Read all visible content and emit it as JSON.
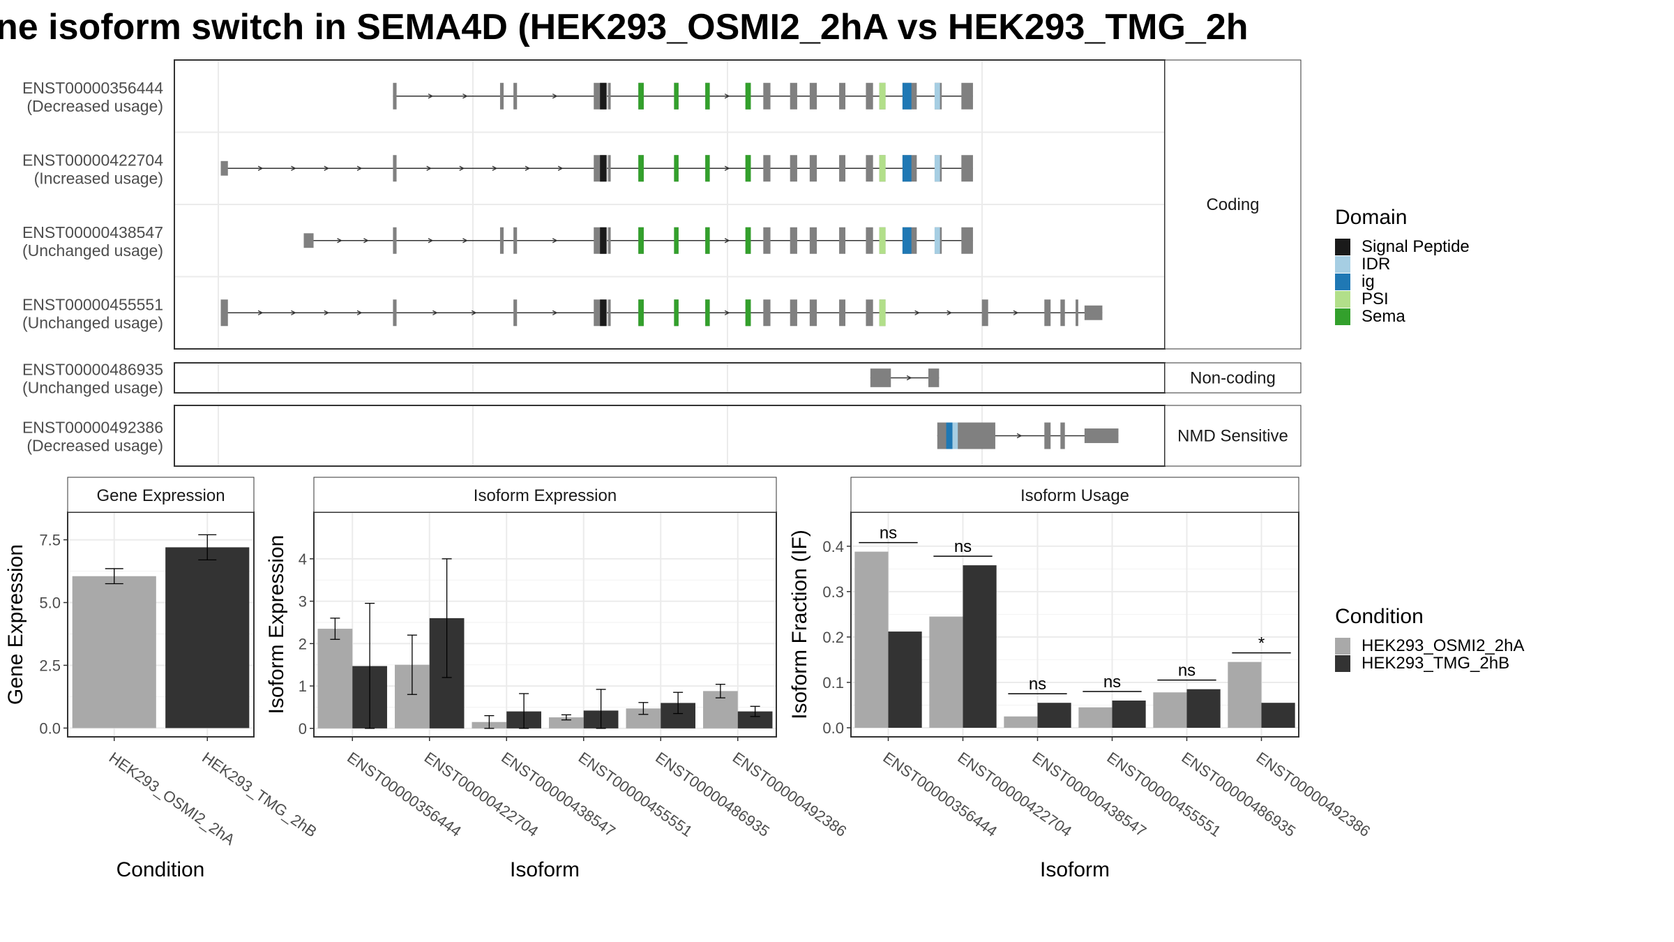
{
  "title": "ne isoform switch in SEMA4D (HEK293_OSMI2_2hA vs HEK293_TMG_2h",
  "colors": {
    "exon": "#808080",
    "signal_peptide": "#1a1a1a",
    "idr": "#a6cee3",
    "ig": "#1f78b4",
    "psi": "#b2df8a",
    "sema": "#33a02c",
    "cond1": "#a9a9a9",
    "cond2": "#333333"
  },
  "transcript_panel": {
    "x_range": [
      0,
      1110
    ],
    "groups": [
      {
        "name": "Coding",
        "transcripts": [
          {
            "id": "ENST00000356444",
            "usage": "(Decreased usage)",
            "exons": [
              [
                245,
                249
              ],
              [
                365,
                369
              ],
              [
                380,
                384
              ],
              [
                470,
                485
              ],
              [
                486,
                489
              ],
              [
                520,
                526
              ],
              [
                560,
                565
              ],
              [
                595,
                600
              ],
              [
                640,
                646
              ],
              [
                660,
                668
              ],
              [
                690,
                698
              ],
              [
                712,
                720
              ],
              [
                745,
                752
              ],
              [
                775,
                783
              ],
              [
                790,
                797
              ],
              [
                816,
                832
              ],
              [
                852,
                860
              ],
              [
                882,
                895
              ]
            ],
            "utr": [
              [
                470,
                476
              ]
            ],
            "domains": [
              {
                "type": "signal_peptide",
                "range": [
                  477,
                  484
                ]
              },
              {
                "type": "sema",
                "range": [
                  520,
                  526
                ]
              },
              {
                "type": "sema",
                "range": [
                  560,
                  565
                ]
              },
              {
                "type": "sema",
                "range": [
                  595,
                  600
                ]
              },
              {
                "type": "sema",
                "range": [
                  640,
                  646
                ]
              },
              {
                "type": "psi",
                "range": [
                  790,
                  797
                ]
              },
              {
                "type": "ig",
                "range": [
                  816,
                  826
                ]
              },
              {
                "type": "idr",
                "range": [
                  852,
                  858
                ]
              }
            ]
          },
          {
            "id": "ENST00000422704",
            "usage": "(Increased usage)",
            "exons": [
              [
                52,
                60
              ],
              [
                245,
                249
              ],
              [
                470,
                485
              ],
              [
                486,
                489
              ],
              [
                520,
                526
              ],
              [
                560,
                565
              ],
              [
                595,
                600
              ],
              [
                640,
                646
              ],
              [
                660,
                668
              ],
              [
                690,
                698
              ],
              [
                712,
                720
              ],
              [
                745,
                752
              ],
              [
                775,
                783
              ],
              [
                790,
                797
              ],
              [
                816,
                832
              ],
              [
                852,
                860
              ],
              [
                882,
                895
              ]
            ],
            "utr": [
              [
                52,
                60
              ]
            ],
            "domains": [
              {
                "type": "signal_peptide",
                "range": [
                  477,
                  484
                ]
              },
              {
                "type": "sema",
                "range": [
                  520,
                  526
                ]
              },
              {
                "type": "sema",
                "range": [
                  560,
                  565
                ]
              },
              {
                "type": "sema",
                "range": [
                  595,
                  600
                ]
              },
              {
                "type": "sema",
                "range": [
                  640,
                  646
                ]
              },
              {
                "type": "psi",
                "range": [
                  790,
                  797
                ]
              },
              {
                "type": "ig",
                "range": [
                  816,
                  826
                ]
              },
              {
                "type": "idr",
                "range": [
                  852,
                  858
                ]
              }
            ]
          },
          {
            "id": "ENST00000438547",
            "usage": "(Unchanged usage)",
            "exons": [
              [
                145,
                156
              ],
              [
                245,
                249
              ],
              [
                365,
                369
              ],
              [
                380,
                384
              ],
              [
                470,
                485
              ],
              [
                486,
                489
              ],
              [
                520,
                526
              ],
              [
                560,
                565
              ],
              [
                595,
                600
              ],
              [
                640,
                646
              ],
              [
                660,
                668
              ],
              [
                690,
                698
              ],
              [
                712,
                720
              ],
              [
                745,
                752
              ],
              [
                775,
                783
              ],
              [
                790,
                797
              ],
              [
                816,
                832
              ],
              [
                852,
                860
              ],
              [
                882,
                895
              ]
            ],
            "utr": [
              [
                145,
                156
              ]
            ],
            "domains": [
              {
                "type": "signal_peptide",
                "range": [
                  477,
                  484
                ]
              },
              {
                "type": "sema",
                "range": [
                  520,
                  526
                ]
              },
              {
                "type": "sema",
                "range": [
                  560,
                  565
                ]
              },
              {
                "type": "sema",
                "range": [
                  595,
                  600
                ]
              },
              {
                "type": "sema",
                "range": [
                  640,
                  646
                ]
              },
              {
                "type": "psi",
                "range": [
                  790,
                  797
                ]
              },
              {
                "type": "ig",
                "range": [
                  816,
                  826
                ]
              },
              {
                "type": "idr",
                "range": [
                  852,
                  858
                ]
              }
            ]
          },
          {
            "id": "ENST00000455551",
            "usage": "(Unchanged usage)",
            "exons": [
              [
                52,
                60
              ],
              [
                245,
                249
              ],
              [
                380,
                384
              ],
              [
                470,
                485
              ],
              [
                486,
                489
              ],
              [
                520,
                526
              ],
              [
                560,
                565
              ],
              [
                595,
                600
              ],
              [
                640,
                646
              ],
              [
                660,
                668
              ],
              [
                690,
                698
              ],
              [
                712,
                720
              ],
              [
                745,
                752
              ],
              [
                775,
                783
              ],
              [
                790,
                797
              ],
              [
                905,
                912
              ],
              [
                975,
                982
              ],
              [
                993,
                998
              ],
              [
                1010,
                1013
              ],
              [
                1020,
                1040
              ]
            ],
            "utr": [
              [
                1020,
                1040
              ]
            ],
            "domains": [
              {
                "type": "signal_peptide",
                "range": [
                  477,
                  484
                ]
              },
              {
                "type": "sema",
                "range": [
                  520,
                  526
                ]
              },
              {
                "type": "sema",
                "range": [
                  560,
                  565
                ]
              },
              {
                "type": "sema",
                "range": [
                  595,
                  600
                ]
              },
              {
                "type": "sema",
                "range": [
                  640,
                  646
                ]
              },
              {
                "type": "psi",
                "range": [
                  790,
                  797
                ]
              }
            ]
          }
        ]
      },
      {
        "name": "Non-coding",
        "transcripts": [
          {
            "id": "ENST00000486935",
            "usage": "(Unchanged usage)",
            "exons": [
              [
                780,
                803
              ],
              [
                845,
                857
              ]
            ],
            "utr": [],
            "domains": []
          }
        ]
      },
      {
        "name": "NMD Sensitive",
        "transcripts": [
          {
            "id": "ENST00000492386",
            "usage": "(Decreased usage)",
            "exons": [
              [
                855,
                920
              ],
              [
                975,
                982
              ],
              [
                993,
                998
              ],
              [
                1020,
                1058
              ]
            ],
            "utr": [
              [
                1020,
                1058
              ]
            ],
            "domains": [
              {
                "type": "ig",
                "range": [
                  865,
                  872
                ]
              },
              {
                "type": "idr",
                "range": [
                  872,
                  878
                ]
              }
            ]
          }
        ]
      }
    ]
  },
  "domain_legend": {
    "title": "Domain",
    "items": [
      {
        "label": "Signal Peptide",
        "key": "signal_peptide"
      },
      {
        "label": "IDR",
        "key": "idr"
      },
      {
        "label": "ig",
        "key": "ig"
      },
      {
        "label": "PSI",
        "key": "psi"
      },
      {
        "label": "Sema",
        "key": "sema"
      }
    ]
  },
  "condition_legend": {
    "title": "Condition",
    "items": [
      {
        "label": "HEK293_OSMI2_2hA",
        "key": "cond1"
      },
      {
        "label": "HEK293_TMG_2hB",
        "key": "cond2"
      }
    ]
  },
  "chart_data": [
    {
      "type": "bar",
      "title": "Gene Expression",
      "xlabel": "Condition",
      "ylabel": "Gene Expression",
      "categories": [
        "HEK293_OSMI2_2hA",
        "HEK293_TMG_2hB"
      ],
      "values": [
        6.05,
        7.2
      ],
      "errors": [
        [
          5.75,
          6.35
        ],
        [
          6.7,
          7.7
        ]
      ],
      "ylim": [
        -0.35,
        8.6
      ],
      "yticks": [
        0.0,
        2.5,
        5.0,
        7.5
      ],
      "ytick_labels": [
        "0.0",
        "2.5",
        "5.0",
        "7.5"
      ],
      "grid": true
    },
    {
      "type": "bar",
      "title": "Isoform Expression",
      "xlabel": "Isoform",
      "ylabel": "Isoform Expression",
      "categories": [
        "ENST00000356444",
        "ENST00000422704",
        "ENST00000438547",
        "ENST00000455551",
        "ENST00000486935",
        "ENST00000492386"
      ],
      "series": [
        {
          "name": "HEK293_OSMI2_2hA",
          "values": [
            2.35,
            1.5,
            0.15,
            0.26,
            0.47,
            0.88
          ],
          "errors": [
            [
              2.1,
              2.6
            ],
            [
              0.8,
              2.2
            ],
            [
              0.0,
              0.3
            ],
            [
              0.2,
              0.32
            ],
            [
              0.33,
              0.61
            ],
            [
              0.72,
              1.04
            ]
          ]
        },
        {
          "name": "HEK293_TMG_2hB",
          "values": [
            1.47,
            2.6,
            0.4,
            0.42,
            0.6,
            0.4
          ],
          "errors": [
            [
              0.0,
              2.95
            ],
            [
              1.2,
              4.0
            ],
            [
              0.0,
              0.82
            ],
            [
              0.0,
              0.92
            ],
            [
              0.35,
              0.85
            ],
            [
              0.28,
              0.52
            ]
          ]
        }
      ],
      "ylim": [
        -0.2,
        5.1
      ],
      "yticks": [
        0,
        1,
        2,
        3,
        4
      ],
      "ytick_labels": [
        "0",
        "1",
        "2",
        "3",
        "4"
      ],
      "grid": true
    },
    {
      "type": "bar",
      "title": "Isoform Usage",
      "xlabel": "Isoform",
      "ylabel": "Isoform Fraction (IF)",
      "categories": [
        "ENST00000356444",
        "ENST00000422704",
        "ENST00000438547",
        "ENST00000455551",
        "ENST00000486935",
        "ENST00000492386"
      ],
      "series": [
        {
          "name": "HEK293_OSMI2_2hA",
          "values": [
            0.388,
            0.245,
            0.025,
            0.045,
            0.078,
            0.145
          ]
        },
        {
          "name": "HEK293_TMG_2hB",
          "values": [
            0.212,
            0.358,
            0.055,
            0.06,
            0.085,
            0.055
          ]
        }
      ],
      "annotations": [
        {
          "label": "ns",
          "y": 0.408
        },
        {
          "label": "ns",
          "y": 0.378
        },
        {
          "label": "ns",
          "y": 0.075
        },
        {
          "label": "ns",
          "y": 0.08
        },
        {
          "label": "ns",
          "y": 0.105
        },
        {
          "label": "*",
          "y": 0.165
        }
      ],
      "ylim": [
        -0.02,
        0.475
      ],
      "yticks": [
        0.0,
        0.1,
        0.2,
        0.3,
        0.4
      ],
      "ytick_labels": [
        "0.0",
        "0.1",
        "0.2",
        "0.3",
        "0.4"
      ],
      "grid": true
    }
  ]
}
